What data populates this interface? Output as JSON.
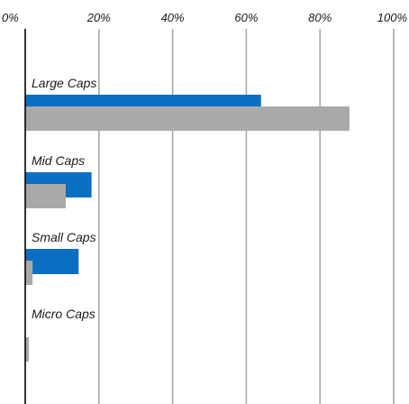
{
  "chart_data": {
    "type": "bar",
    "orientation": "horizontal",
    "categories": [
      "Large Caps",
      "Mid Caps",
      "Small Caps",
      "Micro Caps"
    ],
    "series": [
      {
        "values": [
          64,
          18,
          14.5,
          0
        ],
        "color": "#0a6fc2"
      },
      {
        "values": [
          88,
          11,
          2,
          1
        ],
        "color": "#a9a9ab"
      }
    ],
    "x_ticks": [
      "0%",
      "20%",
      "40%",
      "60%",
      "80%",
      "100%"
    ],
    "xlim": [
      0,
      100
    ],
    "tick_position": "top",
    "grid": true,
    "legend": "none"
  }
}
